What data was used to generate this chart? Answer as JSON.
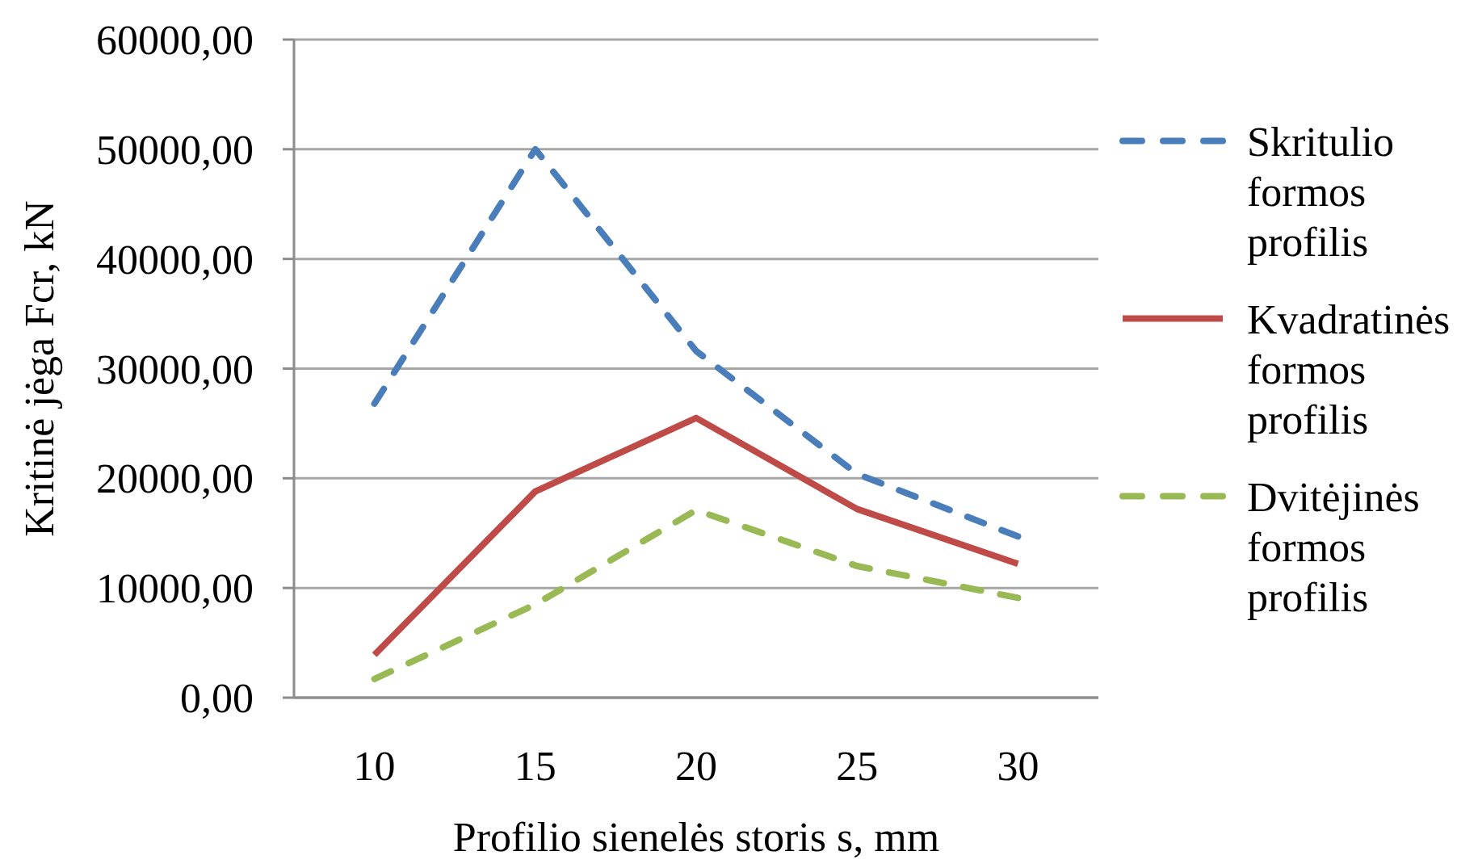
{
  "chart_data": {
    "type": "line",
    "xlabel": "Profilio sienelės storis s, mm",
    "ylabel": "Kritinė jėga Fcr, kN",
    "categories": [
      "10",
      "15",
      "20",
      "25",
      "30"
    ],
    "series": [
      {
        "name": "Skritulio formos profilis",
        "color": "#4a7ebb",
        "line_style": "dashed",
        "values": [
          26800,
          50000,
          31600,
          20400,
          14700
        ]
      },
      {
        "name": "Kvadratinės formos profilis",
        "color": "#be4b48",
        "line_style": "solid",
        "values": [
          3900,
          18800,
          25500,
          17200,
          12200
        ]
      },
      {
        "name": "Dvitėjinės formos profilis",
        "color": "#98b954",
        "line_style": "dashed",
        "values": [
          1700,
          8500,
          17100,
          12000,
          9100
        ]
      }
    ],
    "ylim": [
      0,
      60000
    ],
    "yticks": [
      {
        "value": 0,
        "label": "0,00"
      },
      {
        "value": 10000,
        "label": "10000,00"
      },
      {
        "value": 20000,
        "label": "20000,00"
      },
      {
        "value": 30000,
        "label": "30000,00"
      },
      {
        "value": 40000,
        "label": "40000,00"
      },
      {
        "value": 50000,
        "label": "50000,00"
      },
      {
        "value": 60000,
        "label": "60000,00"
      }
    ],
    "grid": "y",
    "legend": "right"
  }
}
